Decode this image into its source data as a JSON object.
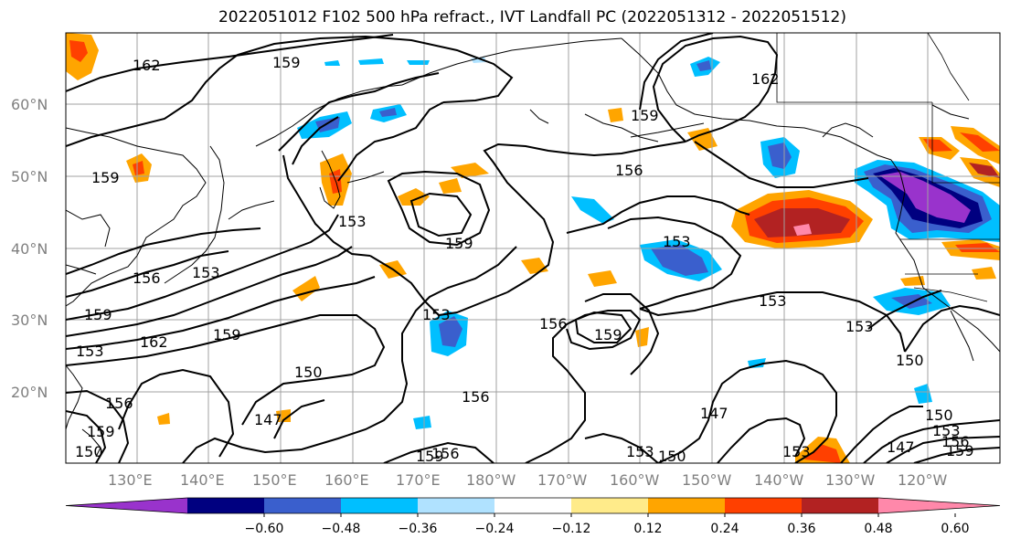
{
  "title": "2022051012 F102 500 hPa refract., IVT Landfall PC (2022051312 - 2022051512)",
  "lat_labels": [
    "60°N",
    "50°N",
    "40°N",
    "30°N",
    "20°N"
  ],
  "lon_labels": [
    "130°E",
    "140°E",
    "150°E",
    "160°E",
    "170°E",
    "180°W",
    "170°W",
    "160°W",
    "150°W",
    "140°W",
    "130°W",
    "120°W"
  ],
  "contour_labels": [
    "162",
    "159",
    "162",
    "159",
    "156",
    "159",
    "153",
    "159",
    "156",
    "153",
    "153",
    "159",
    "159",
    "156",
    "162",
    "159",
    "153",
    "156",
    "159",
    "153",
    "150",
    "147",
    "156",
    "150",
    "147",
    "156",
    "153",
    "153",
    "150",
    "159",
    "150",
    "153",
    "156",
    "159",
    "147",
    "153",
    "150",
    "153"
  ],
  "colorbar": {
    "ticks": [
      "−0.60",
      "−0.48",
      "−0.36",
      "−0.24",
      "−0.12",
      "0.12",
      "0.24",
      "0.36",
      "0.48",
      "0.60"
    ],
    "colors": [
      "#9933cc",
      "#000080",
      "#3a5fcd",
      "#00bfff",
      "#b0e2ff",
      "#ffffff",
      "#ffeb8a",
      "#ffa500",
      "#ff4000",
      "#b22222",
      "#ff88aa"
    ]
  }
}
